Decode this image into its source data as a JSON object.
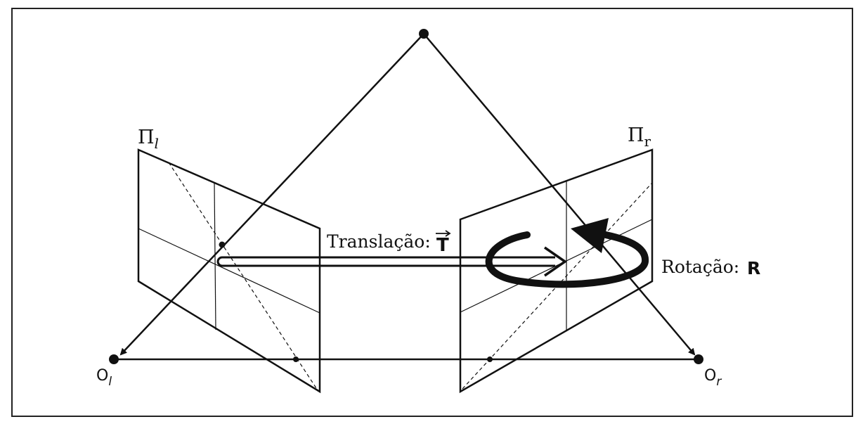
{
  "labels": {
    "plane_left": "Π",
    "plane_left_sub": "l",
    "plane_right": "Π",
    "plane_right_sub": "r",
    "origin_left": "O",
    "origin_left_sub": "l",
    "origin_right": "O",
    "origin_right_sub": "r",
    "translation_text": "Translação:",
    "translation_symbol": "T",
    "rotation_text": "Rotação:",
    "rotation_symbol": "R"
  },
  "colors": {
    "stroke": "#111111",
    "background": "#ffffff"
  }
}
